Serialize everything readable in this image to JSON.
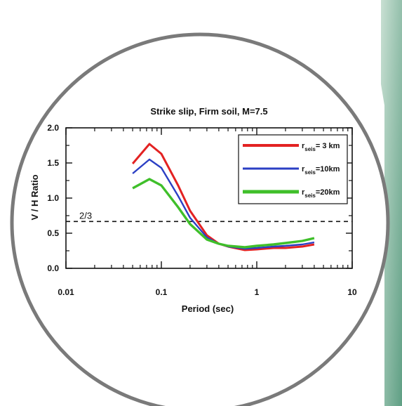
{
  "colors": {
    "background": "#ffffff",
    "circle_border": "#7a7a7a",
    "side_panel_light": "#b9d6c8",
    "side_panel_dark": "#6fa58c"
  },
  "chart_data": {
    "type": "line",
    "title": "Strike slip, Firm soil, M=7.5",
    "xlabel": "Period (sec)",
    "ylabel": "V / H  Ratio",
    "xscale": "log",
    "xlim": [
      0.01,
      10
    ],
    "ylim": [
      0,
      2.0
    ],
    "x_ticks": [
      0.01,
      0.1,
      1,
      10
    ],
    "x_tick_labels": [
      "0.01",
      "0.1",
      "1",
      "10"
    ],
    "y_ticks": [
      0.0,
      0.5,
      1.0,
      1.5,
      2.0
    ],
    "y_tick_labels": [
      "0.0",
      "0.5",
      "1.0",
      "1.5",
      "2.0"
    ],
    "grid": false,
    "legend_position": "top-right",
    "reference_line": {
      "y": 0.6667,
      "label": "2/3",
      "style": "dashed"
    },
    "x": [
      0.05,
      0.075,
      0.1,
      0.15,
      0.2,
      0.3,
      0.4,
      0.5,
      0.75,
      1.0,
      1.5,
      2.0,
      3.0,
      4.0
    ],
    "series": [
      {
        "name_base": "r",
        "name_sub": "seis",
        "name_value": "= 3 km",
        "color": "#e32222",
        "values": [
          1.49,
          1.77,
          1.63,
          1.18,
          0.82,
          0.47,
          0.35,
          0.31,
          0.26,
          0.27,
          0.29,
          0.29,
          0.31,
          0.34
        ]
      },
      {
        "name_base": "r",
        "name_sub": "seis",
        "name_value": "=10km",
        "color": "#2b3fc4",
        "values": [
          1.35,
          1.55,
          1.43,
          1.03,
          0.72,
          0.44,
          0.35,
          0.31,
          0.28,
          0.29,
          0.31,
          0.32,
          0.34,
          0.37
        ]
      },
      {
        "name_base": "r",
        "name_sub": "seis",
        "name_value": "=20km",
        "color": "#3fbf2a",
        "values": [
          1.14,
          1.27,
          1.18,
          0.87,
          0.63,
          0.41,
          0.35,
          0.32,
          0.3,
          0.32,
          0.34,
          0.36,
          0.39,
          0.43
        ]
      }
    ]
  }
}
